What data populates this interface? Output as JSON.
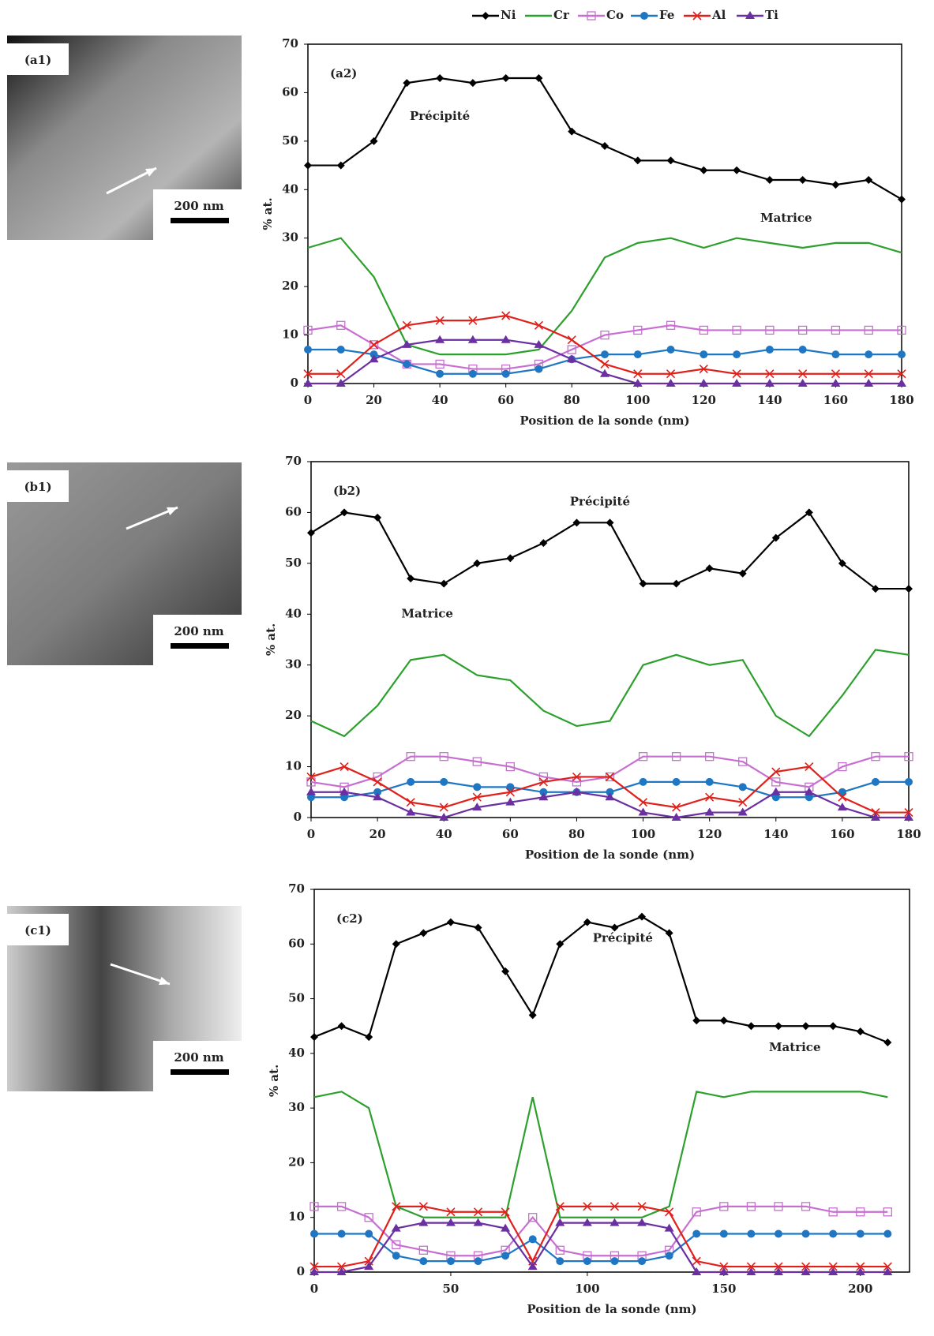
{
  "images": [
    {
      "label": "(a1)",
      "scale_bar": "200 nm"
    },
    {
      "label": "(b1)",
      "scale_bar": "200 nm"
    },
    {
      "label": "(c1)",
      "scale_bar": "200 nm"
    }
  ],
  "chart_data": [
    {
      "type": "line",
      "panel_label": "(a2)",
      "x_label": "Position de la sonde (nm)",
      "y_label": "% at.",
      "annotations": [
        "Précipité",
        "Matrice"
      ],
      "xlim": [
        0,
        180
      ],
      "xticks": [
        0,
        20,
        40,
        60,
        80,
        100,
        120,
        140,
        160,
        180
      ],
      "ylim": [
        0,
        70
      ],
      "yticks": [
        0,
        10,
        20,
        30,
        40,
        50,
        60,
        70
      ],
      "x": [
        0,
        10,
        20,
        30,
        40,
        50,
        60,
        70,
        80,
        90,
        100,
        110,
        120,
        130,
        140,
        150,
        160,
        170,
        180
      ],
      "series": [
        {
          "name": "Ni",
          "color": "#000000",
          "marker": "diamond",
          "values": [
            45,
            45,
            50,
            62,
            63,
            62,
            63,
            63,
            52,
            49,
            46,
            46,
            44,
            44,
            42,
            42,
            41,
            42,
            38
          ]
        },
        {
          "name": "Cr",
          "color": "#2ca02c",
          "marker": "none",
          "values": [
            28,
            30,
            22,
            8,
            6,
            6,
            6,
            7,
            15,
            26,
            29,
            30,
            28,
            30,
            29,
            28,
            29,
            29,
            27
          ]
        },
        {
          "name": "Co",
          "color": "#c76fd0",
          "marker": "square",
          "values": [
            11,
            12,
            8,
            4,
            4,
            3,
            3,
            4,
            7,
            10,
            11,
            12,
            11,
            11,
            11,
            11,
            11,
            11,
            11
          ]
        },
        {
          "name": "Fe",
          "color": "#1f77c4",
          "marker": "circle",
          "values": [
            7,
            7,
            6,
            4,
            2,
            2,
            2,
            3,
            5,
            6,
            6,
            7,
            6,
            6,
            7,
            7,
            6,
            6,
            6
          ]
        },
        {
          "name": "Al",
          "color": "#e0201b",
          "marker": "x",
          "values": [
            2,
            2,
            8,
            12,
            13,
            13,
            14,
            12,
            9,
            4,
            2,
            2,
            3,
            2,
            2,
            2,
            2,
            2,
            2
          ]
        },
        {
          "name": "Ti",
          "color": "#6a2fa0",
          "marker": "triangle",
          "values": [
            0,
            0,
            5,
            8,
            9,
            9,
            9,
            8,
            5,
            2,
            0,
            0,
            0,
            0,
            0,
            0,
            0,
            0,
            0
          ]
        }
      ]
    },
    {
      "type": "line",
      "panel_label": "(b2)",
      "x_label": "Position de la sonde (nm)",
      "y_label": "% at.",
      "annotations": [
        "Précipité",
        "Matrice"
      ],
      "xlim": [
        0,
        180
      ],
      "xticks": [
        0,
        20,
        40,
        60,
        80,
        100,
        120,
        140,
        160,
        180
      ],
      "ylim": [
        0,
        70
      ],
      "yticks": [
        0,
        10,
        20,
        30,
        40,
        50,
        60,
        70
      ],
      "x": [
        0,
        10,
        20,
        30,
        40,
        50,
        60,
        70,
        80,
        90,
        100,
        110,
        120,
        130,
        140,
        150,
        160,
        170,
        180
      ],
      "series": [
        {
          "name": "Ni",
          "color": "#000000",
          "marker": "diamond",
          "values": [
            56,
            60,
            59,
            47,
            46,
            50,
            51,
            54,
            58,
            58,
            46,
            46,
            49,
            48,
            55,
            60,
            50,
            45,
            45
          ]
        },
        {
          "name": "Cr",
          "color": "#2ca02c",
          "marker": "none",
          "values": [
            19,
            16,
            22,
            31,
            32,
            28,
            27,
            21,
            18,
            19,
            30,
            32,
            30,
            31,
            20,
            16,
            24,
            33,
            32
          ]
        },
        {
          "name": "Co",
          "color": "#c76fd0",
          "marker": "square",
          "values": [
            7,
            6,
            8,
            12,
            12,
            11,
            10,
            8,
            7,
            8,
            12,
            12,
            12,
            11,
            7,
            6,
            10,
            12,
            12
          ]
        },
        {
          "name": "Fe",
          "color": "#1f77c4",
          "marker": "circle",
          "values": [
            4,
            4,
            5,
            7,
            7,
            6,
            6,
            5,
            5,
            5,
            7,
            7,
            7,
            6,
            4,
            4,
            5,
            7,
            7
          ]
        },
        {
          "name": "Al",
          "color": "#e0201b",
          "marker": "x",
          "values": [
            8,
            10,
            7,
            3,
            2,
            4,
            5,
            7,
            8,
            8,
            3,
            2,
            4,
            3,
            9,
            10,
            4,
            1,
            1
          ]
        },
        {
          "name": "Ti",
          "color": "#6a2fa0",
          "marker": "triangle",
          "values": [
            5,
            5,
            4,
            1,
            0,
            2,
            3,
            4,
            5,
            4,
            1,
            0,
            1,
            1,
            5,
            5,
            2,
            0,
            0
          ]
        }
      ]
    },
    {
      "type": "line",
      "panel_label": "(c2)",
      "x_label": "Position de la sonde (nm)",
      "y_label": "% at.",
      "annotations": [
        "Précipité",
        "Matrice"
      ],
      "xlim": [
        0,
        218
      ],
      "xticks": [
        0,
        50,
        100,
        150,
        200
      ],
      "ylim": [
        0,
        70
      ],
      "yticks": [
        0,
        10,
        20,
        30,
        40,
        50,
        60,
        70
      ],
      "x": [
        0,
        10,
        20,
        30,
        40,
        50,
        60,
        70,
        80,
        90,
        100,
        110,
        120,
        130,
        140,
        150,
        160,
        170,
        180,
        190,
        200,
        210
      ],
      "series": [
        {
          "name": "Ni",
          "color": "#000000",
          "marker": "diamond",
          "values": [
            43,
            45,
            43,
            60,
            62,
            64,
            63,
            55,
            47,
            60,
            64,
            63,
            65,
            62,
            46,
            46,
            45,
            45,
            45,
            45,
            44,
            42
          ]
        },
        {
          "name": "Cr",
          "color": "#2ca02c",
          "marker": "none",
          "values": [
            32,
            33,
            30,
            12,
            10,
            10,
            10,
            10,
            32,
            10,
            10,
            10,
            10,
            12,
            33,
            32,
            33,
            33,
            33,
            33,
            33,
            32
          ]
        },
        {
          "name": "Co",
          "color": "#c76fd0",
          "marker": "square",
          "values": [
            12,
            12,
            10,
            5,
            4,
            3,
            3,
            4,
            10,
            4,
            3,
            3,
            3,
            4,
            11,
            12,
            12,
            12,
            12,
            11,
            11,
            11
          ]
        },
        {
          "name": "Fe",
          "color": "#1f77c4",
          "marker": "circle",
          "values": [
            7,
            7,
            7,
            3,
            2,
            2,
            2,
            3,
            6,
            2,
            2,
            2,
            2,
            3,
            7,
            7,
            7,
            7,
            7,
            7,
            7,
            7
          ]
        },
        {
          "name": "Al",
          "color": "#e0201b",
          "marker": "x",
          "values": [
            1,
            1,
            2,
            12,
            12,
            11,
            11,
            11,
            2,
            12,
            12,
            12,
            12,
            11,
            2,
            1,
            1,
            1,
            1,
            1,
            1,
            1
          ]
        },
        {
          "name": "Ti",
          "color": "#6a2fa0",
          "marker": "triangle",
          "values": [
            0,
            0,
            1,
            8,
            9,
            9,
            9,
            8,
            1,
            9,
            9,
            9,
            9,
            8,
            0,
            0,
            0,
            0,
            0,
            0,
            0,
            0
          ]
        }
      ]
    }
  ]
}
